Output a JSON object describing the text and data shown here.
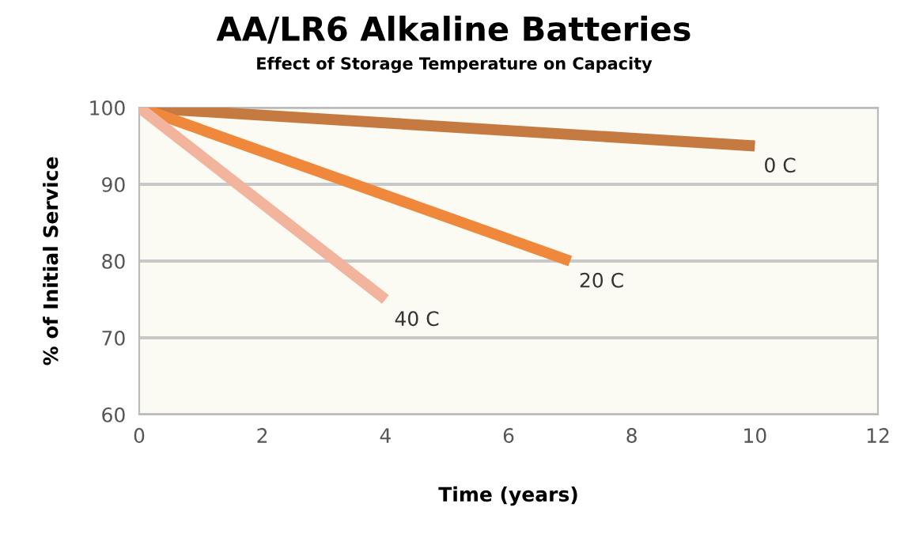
{
  "chart_data": {
    "type": "line",
    "title": "AA/LR6 Alkaline Batteries",
    "subtitle": "Effect of Storage Temperature on Capacity",
    "xlabel": "Time (years)",
    "ylabel": "% of Initial Service",
    "xlim": [
      0,
      12
    ],
    "xticks": [
      0,
      2,
      4,
      6,
      8,
      10,
      12
    ],
    "ylim": [
      60,
      100
    ],
    "yticks": [
      60,
      70,
      80,
      90,
      100
    ],
    "grid": "y",
    "legend": false,
    "marker": "none",
    "line_style": "solid",
    "series": [
      {
        "name": "0 C",
        "color": "#c47a40",
        "x": [
          0,
          10
        ],
        "values": [
          100,
          95
        ]
      },
      {
        "name": "20 C",
        "color": "#f0883c",
        "x": [
          0,
          7
        ],
        "values": [
          100,
          80
        ]
      },
      {
        "name": "40 C",
        "color": "#f2b49c",
        "x": [
          0,
          4
        ],
        "values": [
          100,
          75
        ]
      }
    ]
  }
}
